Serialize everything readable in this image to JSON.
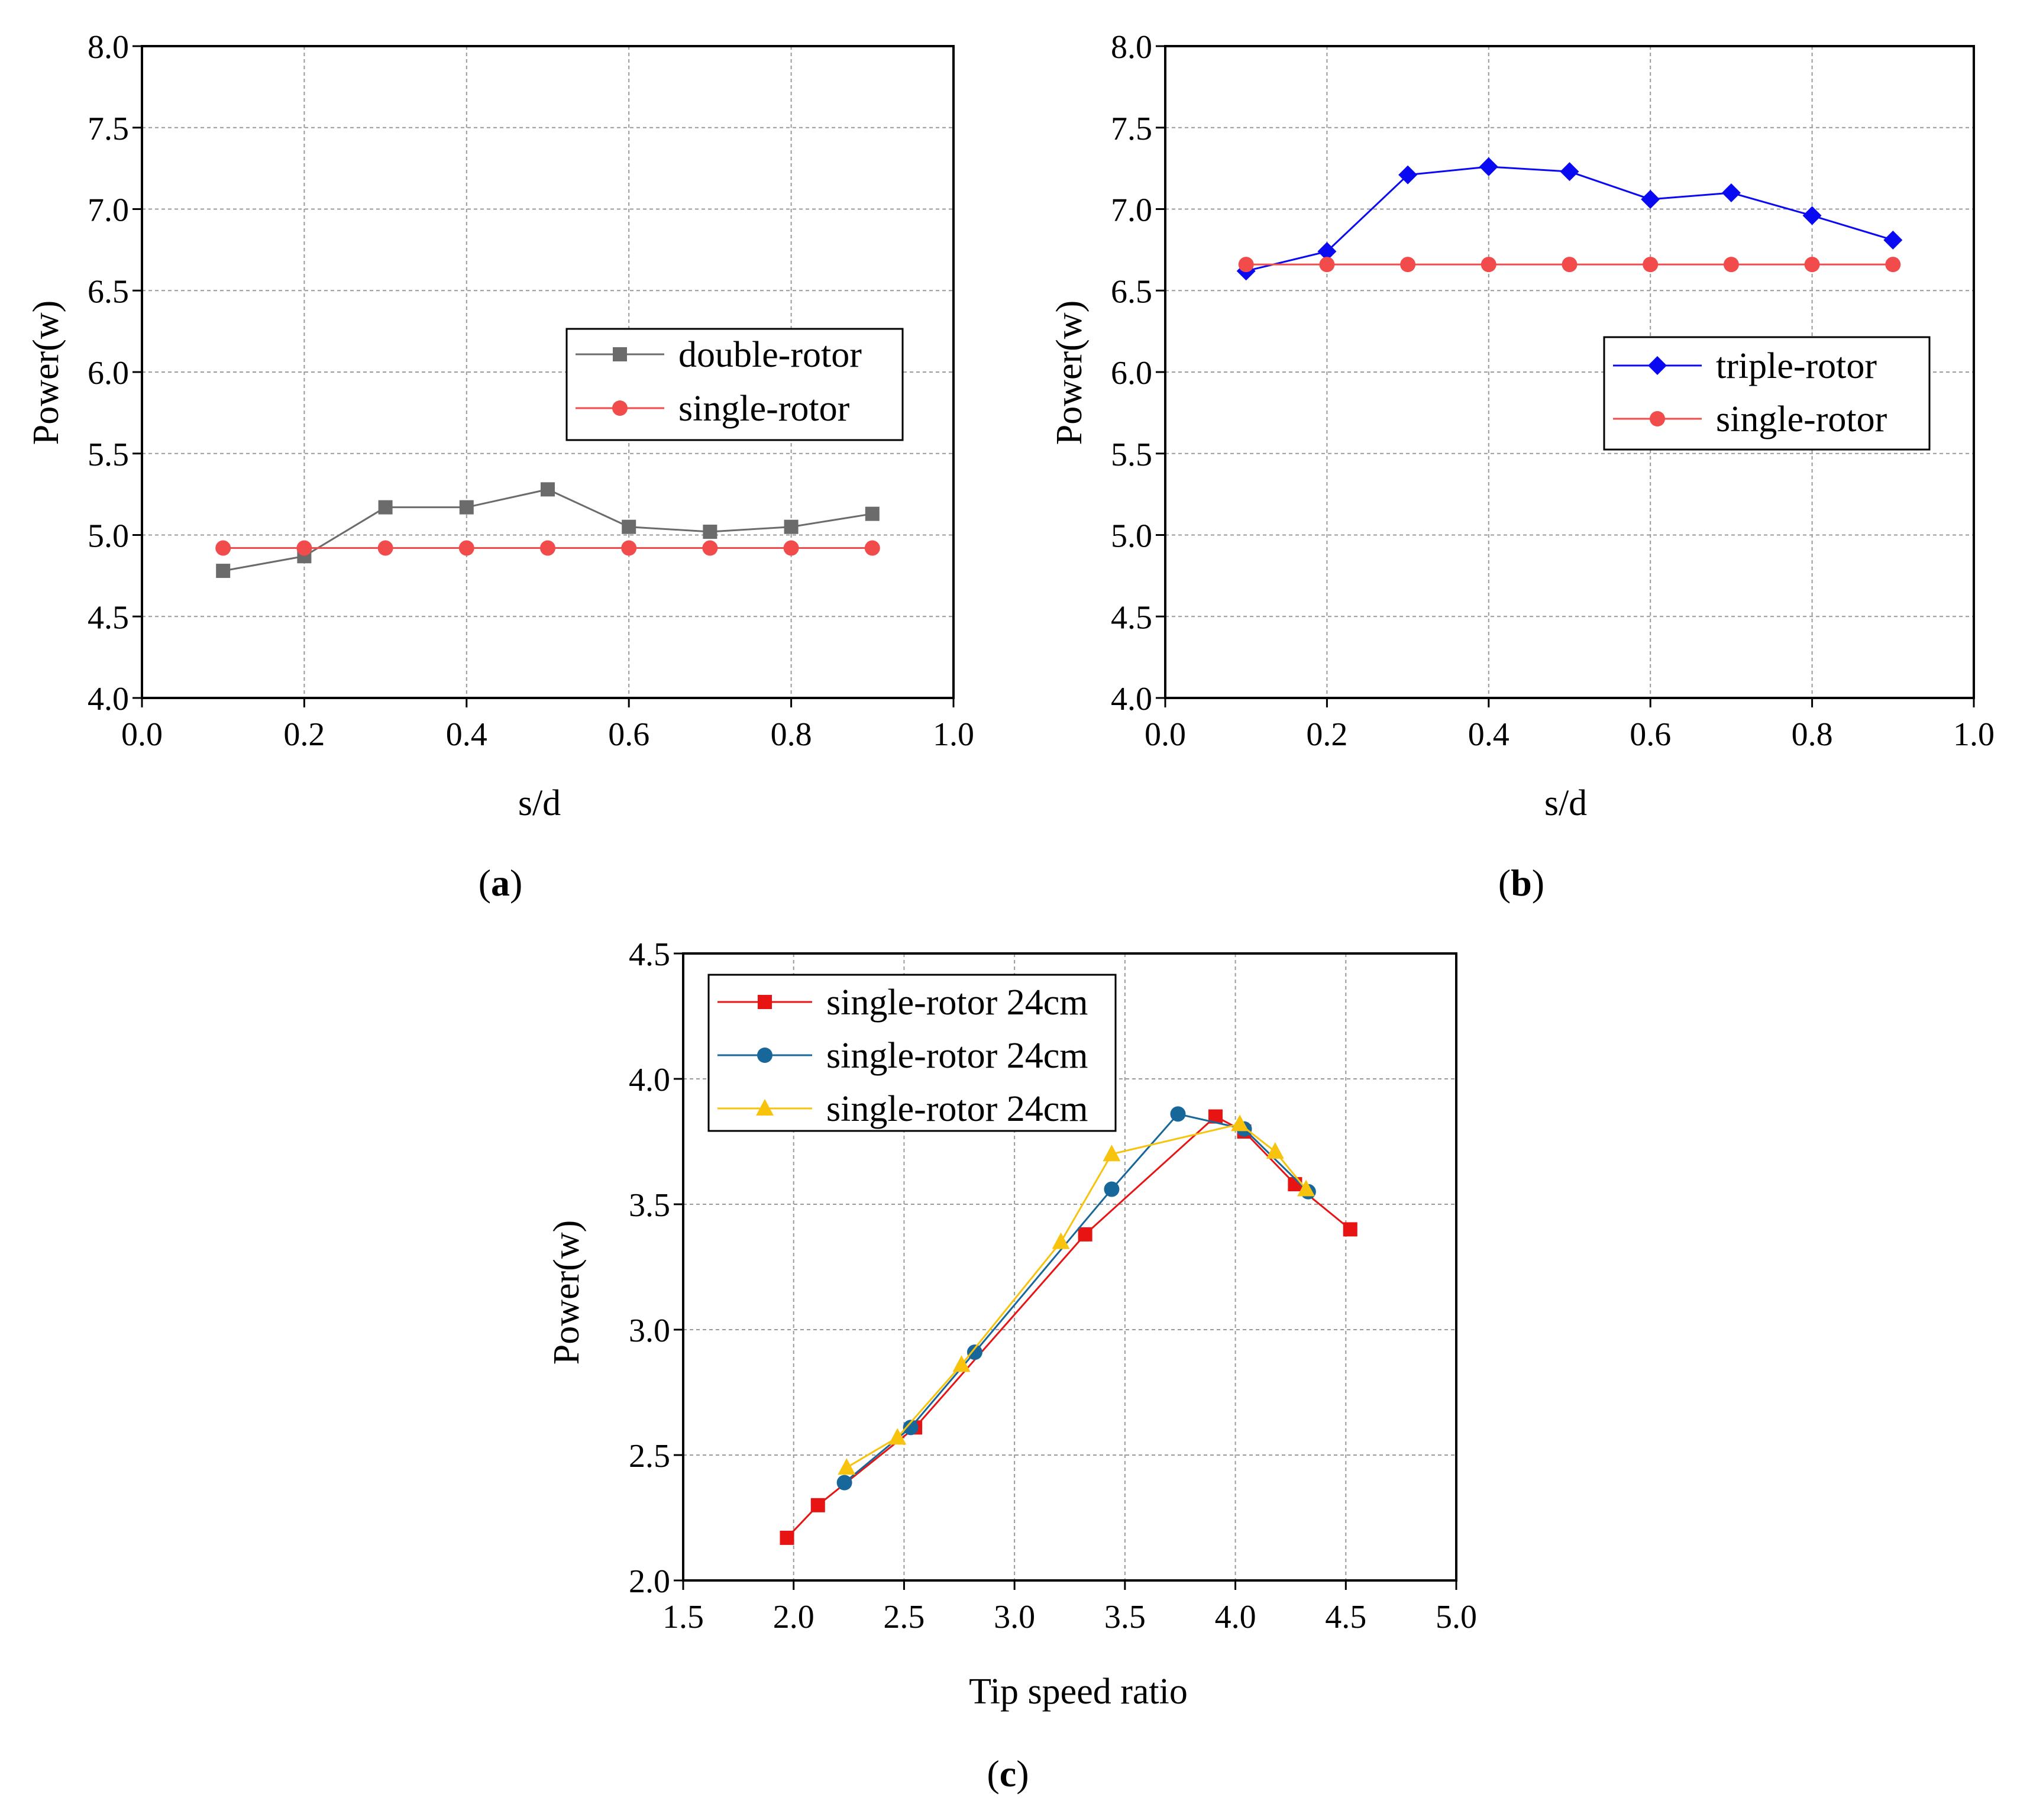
{
  "chart_data": [
    {
      "id": "a",
      "type": "line",
      "panel_label": "a",
      "xlabel": "s/d",
      "ylabel": "Power(w)",
      "xlim": [
        0.0,
        1.0
      ],
      "ylim": [
        4.0,
        8.0
      ],
      "xticks": [
        "0.0",
        "0.2",
        "0.4",
        "0.6",
        "0.8",
        "1.0"
      ],
      "yticks": [
        "4.0",
        "4.5",
        "5.0",
        "5.5",
        "6.0",
        "6.5",
        "7.0",
        "7.5",
        "8.0"
      ],
      "grid": true,
      "legend_position": "middle-right",
      "series": [
        {
          "name": "double-rotor",
          "color": "#6b6b6b",
          "marker": "square",
          "x": [
            0.1,
            0.2,
            0.3,
            0.4,
            0.5,
            0.6,
            0.7,
            0.8,
            0.9
          ],
          "y": [
            4.78,
            4.87,
            5.17,
            5.17,
            5.28,
            5.05,
            5.02,
            5.05,
            5.13
          ]
        },
        {
          "name": "single-rotor",
          "color": "#f24b4b",
          "marker": "circle",
          "x": [
            0.1,
            0.2,
            0.3,
            0.4,
            0.5,
            0.6,
            0.7,
            0.8,
            0.9
          ],
          "y": [
            4.92,
            4.92,
            4.92,
            4.92,
            4.92,
            4.92,
            4.92,
            4.92,
            4.92
          ]
        }
      ]
    },
    {
      "id": "b",
      "type": "line",
      "panel_label": "b",
      "xlabel": "s/d",
      "ylabel": "Power(w)",
      "xlim": [
        0.0,
        1.0
      ],
      "ylim": [
        4.0,
        8.0
      ],
      "xticks": [
        "0.0",
        "0.2",
        "0.4",
        "0.6",
        "0.8",
        "1.0"
      ],
      "yticks": [
        "4.0",
        "4.5",
        "5.0",
        "5.5",
        "6.0",
        "6.5",
        "7.0",
        "7.5",
        "8.0"
      ],
      "grid": true,
      "legend_position": "middle-right",
      "series": [
        {
          "name": "triple-rotor",
          "color": "#0a0af2",
          "marker": "diamond",
          "x": [
            0.1,
            0.2,
            0.3,
            0.4,
            0.5,
            0.6,
            0.7,
            0.8,
            0.9
          ],
          "y": [
            6.62,
            6.74,
            7.21,
            7.26,
            7.23,
            7.06,
            7.1,
            6.96,
            6.81
          ]
        },
        {
          "name": "single-rotor",
          "color": "#f24b4b",
          "marker": "circle",
          "x": [
            0.1,
            0.2,
            0.3,
            0.4,
            0.5,
            0.6,
            0.7,
            0.8,
            0.9
          ],
          "y": [
            6.66,
            6.66,
            6.66,
            6.66,
            6.66,
            6.66,
            6.66,
            6.66,
            6.66
          ]
        }
      ]
    },
    {
      "id": "c",
      "type": "line",
      "panel_label": "c",
      "xlabel": "Tip speed ratio",
      "ylabel": "Power(w)",
      "xlim": [
        1.5,
        5.0
      ],
      "ylim": [
        2.0,
        4.5
      ],
      "xticks": [
        "1.5",
        "2.0",
        "2.5",
        "3.0",
        "3.5",
        "4.0",
        "4.5",
        "5.0"
      ],
      "yticks": [
        "2.0",
        "2.5",
        "3.0",
        "3.5",
        "4.0",
        "4.5"
      ],
      "grid": true,
      "legend_position": "top-left",
      "series": [
        {
          "name": "single-rotor 24cm",
          "color": "#e81414",
          "marker": "square",
          "x": [
            1.97,
            2.11,
            2.55,
            3.32,
            3.91,
            4.04,
            4.27,
            4.52
          ],
          "y": [
            2.17,
            2.3,
            2.61,
            3.38,
            3.85,
            3.79,
            3.58,
            3.4
          ]
        },
        {
          "name": "single-rotor 24cm",
          "color": "#17679b",
          "marker": "circle",
          "x": [
            2.23,
            2.53,
            2.82,
            3.44,
            3.74,
            4.04,
            4.33
          ],
          "y": [
            2.39,
            2.61,
            2.91,
            3.56,
            3.86,
            3.8,
            3.55
          ]
        },
        {
          "name": "single-rotor 24cm",
          "color": "#f7c30c",
          "marker": "triangle",
          "x": [
            2.24,
            2.47,
            2.76,
            3.21,
            3.44,
            4.02,
            4.18,
            4.32
          ],
          "y": [
            2.45,
            2.57,
            2.86,
            3.35,
            3.7,
            3.82,
            3.71,
            3.56
          ]
        }
      ]
    }
  ]
}
